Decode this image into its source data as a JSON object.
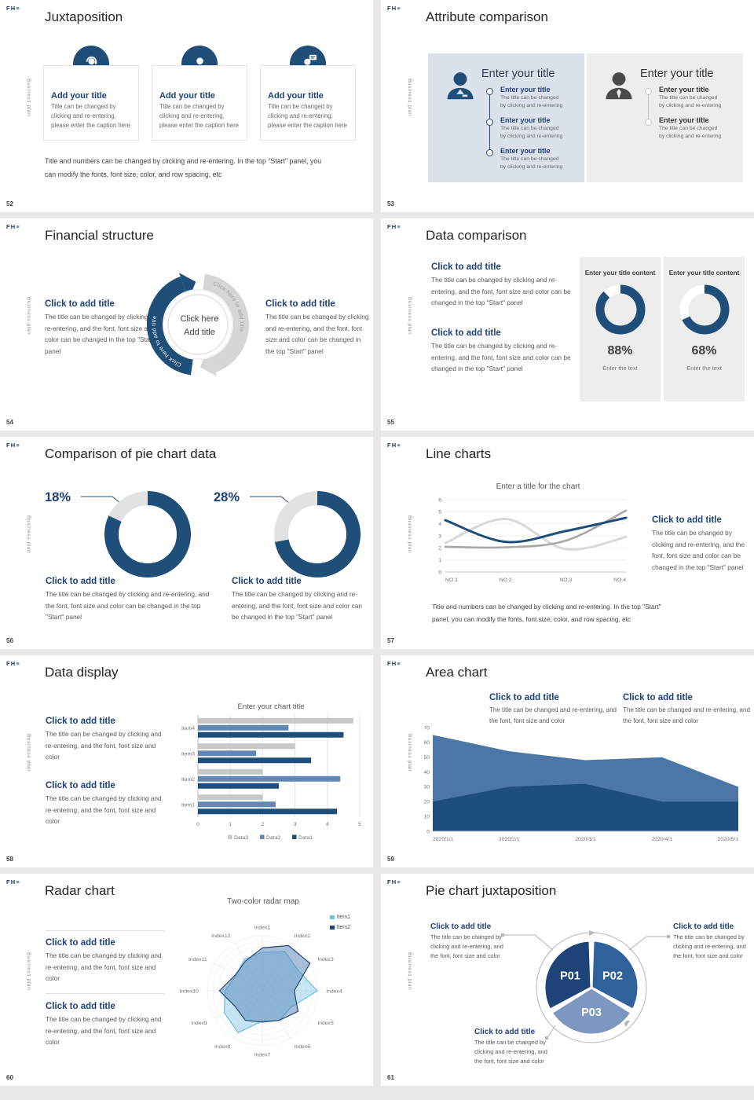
{
  "global": {
    "logo": "FH≡",
    "side_text": "Business plan"
  },
  "common": {
    "body_start_panel": "The title can be changed by clicking and re-entering, and the font, font size and color can be changed in the top \"Start\" panel",
    "body_font_color": "The title can be changed by clicking and re-entering, and the font, font size and color",
    "body_area": "The title can be changed and re-entering, and the font, font size and color",
    "body_short": "The title can be changed",
    "body_short2": "by clicking and re-entering",
    "click_title": "Click to add title"
  },
  "slides": [
    {
      "num": "52",
      "title": "Juxtaposition",
      "cards": [
        {
          "icon": "support-agent-icon",
          "title": "Add your title",
          "caption": "Title can be changed by clicking and re-entering, please enter the caption here"
        },
        {
          "icon": "person-icon",
          "title": "Add your title",
          "caption": "Title can be changed by clicking and re-entering, please enter the caption here"
        },
        {
          "icon": "person-chat-icon",
          "title": "Add your title",
          "caption": "Title can be changed by clicking and re-entering, please enter the caption here"
        }
      ],
      "note": "Title and numbers can be changed by clicking and re-entering. In the top \"Start\" panel, you can modify the fonts, font size, color, and row spacing, etc"
    },
    {
      "num": "53",
      "title": "Attribute comparison",
      "left_panel": {
        "title": "Enter your title",
        "items": [
          {
            "t": "Enter your title",
            "b1": "The title can be changed",
            "b2": "by clicking and re-entering"
          },
          {
            "t": "Enter your title",
            "b1": "The title can be changed",
            "b2": "by clicking and re-entering"
          },
          {
            "t": "Enter your title",
            "b1": "The title can be changed",
            "b2": "by clicking and re-entering"
          }
        ]
      },
      "right_panel": {
        "title": "Enter your title",
        "items": [
          {
            "t": "Enter your title",
            "b1": "The title can be changed",
            "b2": "by clicking and re-entering"
          },
          {
            "t": "Enter your title",
            "b1": "The title can be changed",
            "b2": "by clicking and re-entering"
          }
        ]
      }
    },
    {
      "num": "54",
      "title": "Financial structure",
      "left": {
        "h": "Click to add title",
        "b": "The title can be changed by clicking and re-entering, and the font, font size and color can be changed in the top \"Start\" panel"
      },
      "right": {
        "h": "Click to add title",
        "b": "The title can be changed by clicking and re-entering, and the font, font size and color can be changed in the top \"Start\" panel"
      },
      "center_line1": "Click here",
      "center_line2": "Add title",
      "arc_label": "Click here to add title"
    },
    {
      "num": "55",
      "title": "Data comparison",
      "blocks": [
        {
          "h": "Click to add title",
          "b": "The title can be changed by clicking and re-entering, and the font, font size and color can be changed in the top \"Start\" panel"
        },
        {
          "h": "Click to add title",
          "b": "The title can be changed by clicking and re-entering, and the font, font size and color can be changed in the top \"Start\" panel"
        }
      ],
      "cards": [
        {
          "header": "Enter your title content",
          "pct": "88%",
          "caption": "Enter the text"
        },
        {
          "header": "Enter your title content",
          "pct": "68%",
          "caption": "Enter the text"
        }
      ]
    },
    {
      "num": "56",
      "title": "Comparison of pie chart data",
      "labels": [
        "18%",
        "28%"
      ],
      "blocks": [
        {
          "h": "Click to add title",
          "b": "The title can be changed by clicking and re-entering, and the font, font size and color can be changed in the top \"Start\" panel"
        },
        {
          "h": "Click to add title",
          "b": "The title can be changed by clicking and re-entering, and the font, font size and color can be changed in the top \"Start\" panel"
        }
      ]
    },
    {
      "num": "57",
      "title": "Line charts",
      "block": {
        "h": "Click to add title",
        "b": "The title can be changed by clicking and re-entering, and the font, font size and color can be changed in the top \"Start\" panel"
      },
      "chart_title": "Enter a title for the chart",
      "note": "Title and numbers can be changed by clicking and re-entering. In the top \"Start\" panel, you can modify the fonts, font size, color, and row spacing, etc"
    },
    {
      "num": "58",
      "title": "Data display",
      "chart_title": "Enter your chart title",
      "blocks": [
        {
          "h": "Click to add title",
          "b": "The title can be changed by clicking and re-entering, and the font, font size and color"
        },
        {
          "h": "Click to add title",
          "b": "The title can be changed by clicking and re-entering, and the font, font size and color"
        }
      ]
    },
    {
      "num": "59",
      "title": "Area chart",
      "blocks": [
        {
          "h": "Click to add title",
          "b": "The title can be changed and re-entering, and the font, font size and color"
        },
        {
          "h": "Click to add title",
          "b": "The title can be changed and re-entering, and the font, font size and color"
        }
      ]
    },
    {
      "num": "60",
      "title": "Radar chart",
      "chart_title": "Two-color radar map",
      "blocks": [
        {
          "h": "Click to add title",
          "b": "The title can be changed by clicking and re-entering, and the font, font size and color"
        },
        {
          "h": "Click to add title",
          "b": "The title can be changed by clicking and re-entering, and the font, font size and color"
        }
      ]
    },
    {
      "num": "61",
      "title": "Pie chart juxtaposition",
      "blocks": [
        {
          "h": "Click to add title",
          "b": "The title can be changed by clicking and re-entering, and the font, font size and color"
        },
        {
          "h": "Click to add title",
          "b": "The title can be changed by clicking and re-entering, and the font, font size and color"
        },
        {
          "h": "Click to add title",
          "b": "The title can be changed by clicking and re-entering, and the font, font size and color"
        }
      ]
    }
  ],
  "chart_data": [
    {
      "id": "line57",
      "type": "line",
      "title": "Enter a title for the chart",
      "x": [
        "NO.1",
        "NO.2",
        "NO.3",
        "NO.4"
      ],
      "ylim": [
        0,
        6
      ],
      "yticks": [
        0,
        1,
        2,
        3,
        4,
        5,
        6
      ],
      "grid": true,
      "legend": "none",
      "series": [
        {
          "name": "series-navy",
          "color": "#1f4e79",
          "width": 3,
          "values": [
            4.3,
            2.5,
            3.4,
            4.5
          ]
        },
        {
          "name": "series-gray",
          "color": "#a8a8a8",
          "width": 2.6,
          "values": [
            2.1,
            2.05,
            2.6,
            5.1
          ]
        },
        {
          "name": "series-light",
          "color": "#d9d9d9",
          "width": 3,
          "values": [
            2.4,
            4.4,
            1.9,
            2.9
          ]
        }
      ]
    },
    {
      "id": "bars58",
      "type": "bar",
      "title": "Enter your chart title",
      "categories": [
        "Item1",
        "Item2",
        "Item3",
        "Item4"
      ],
      "xlim": [
        0,
        5
      ],
      "xticks": [
        0,
        1,
        2,
        3,
        4,
        5
      ],
      "legend": "bottom",
      "series": [
        {
          "name": "Data3",
          "color": "#c8c8c8",
          "values": [
            2.0,
            2.0,
            3.0,
            4.8
          ]
        },
        {
          "name": "Data2",
          "color": "#6188b4",
          "values": [
            2.4,
            4.4,
            1.8,
            2.8
          ]
        },
        {
          "name": "Data1",
          "color": "#1f4e79",
          "values": [
            4.3,
            2.5,
            3.5,
            4.5
          ]
        }
      ]
    },
    {
      "id": "area59",
      "type": "area",
      "x": [
        "2020/1/1",
        "2020/2/1",
        "2020/3/1",
        "2020/4/1",
        "2020/5/1"
      ],
      "ylim": [
        0,
        70
      ],
      "yticks": [
        0,
        10,
        20,
        30,
        40,
        50,
        60,
        70
      ],
      "series": [
        {
          "name": "upper",
          "color": "#4c76a6",
          "values": [
            65,
            54,
            48,
            50,
            30
          ]
        },
        {
          "name": "lower",
          "color": "#1d4e7d",
          "values": [
            20,
            30,
            32,
            20,
            20
          ]
        }
      ]
    },
    {
      "id": "radar60",
      "type": "radar",
      "title": "Two-color radar map",
      "rmax": 1,
      "axes": [
        "Index1",
        "Index2",
        "Index3",
        "Index4",
        "Index5",
        "Index6",
        "Index7",
        "Index8",
        "Index9",
        "Index10",
        "Index11",
        "Index12"
      ],
      "series": [
        {
          "name": "Item1",
          "color": "#6fc2e0",
          "fill": "rgba(126,200,227,0.45)",
          "values": [
            0.7,
            0.82,
            0.75,
            1.0,
            0.6,
            0.62,
            0.55,
            0.88,
            0.8,
            0.68,
            0.55,
            0.66
          ]
        },
        {
          "name": "Item2",
          "color": "#24466e",
          "fill": "rgba(84,130,183,0.50)",
          "values": [
            0.78,
            0.95,
            1.0,
            0.58,
            0.75,
            0.62,
            0.57,
            0.62,
            0.57,
            0.78,
            0.57,
            0.62
          ]
        }
      ]
    },
    {
      "id": "donut88",
      "type": "donut",
      "value": 88,
      "fill_pct": 88,
      "color": "#1f4e79",
      "track": "#ffffff"
    },
    {
      "id": "donut68",
      "type": "donut",
      "value": 68,
      "fill_pct": 68,
      "color": "#1f4e79",
      "track": "#ffffff"
    },
    {
      "id": "pie18",
      "type": "donut",
      "value": 18,
      "fill_pct": 82,
      "color": "#1f4e79",
      "track": "#e2e2e2"
    },
    {
      "id": "pie28",
      "type": "donut",
      "value": 28,
      "fill_pct": 72,
      "color": "#1f4e79",
      "track": "#e2e2e2"
    },
    {
      "id": "pie61",
      "type": "pie",
      "labels": [
        "P01",
        "P02",
        "P03"
      ],
      "values": [
        33.3,
        33.3,
        33.3
      ],
      "colors": [
        "#1e4378",
        "#2f619b",
        "#7e97c0"
      ]
    }
  ]
}
